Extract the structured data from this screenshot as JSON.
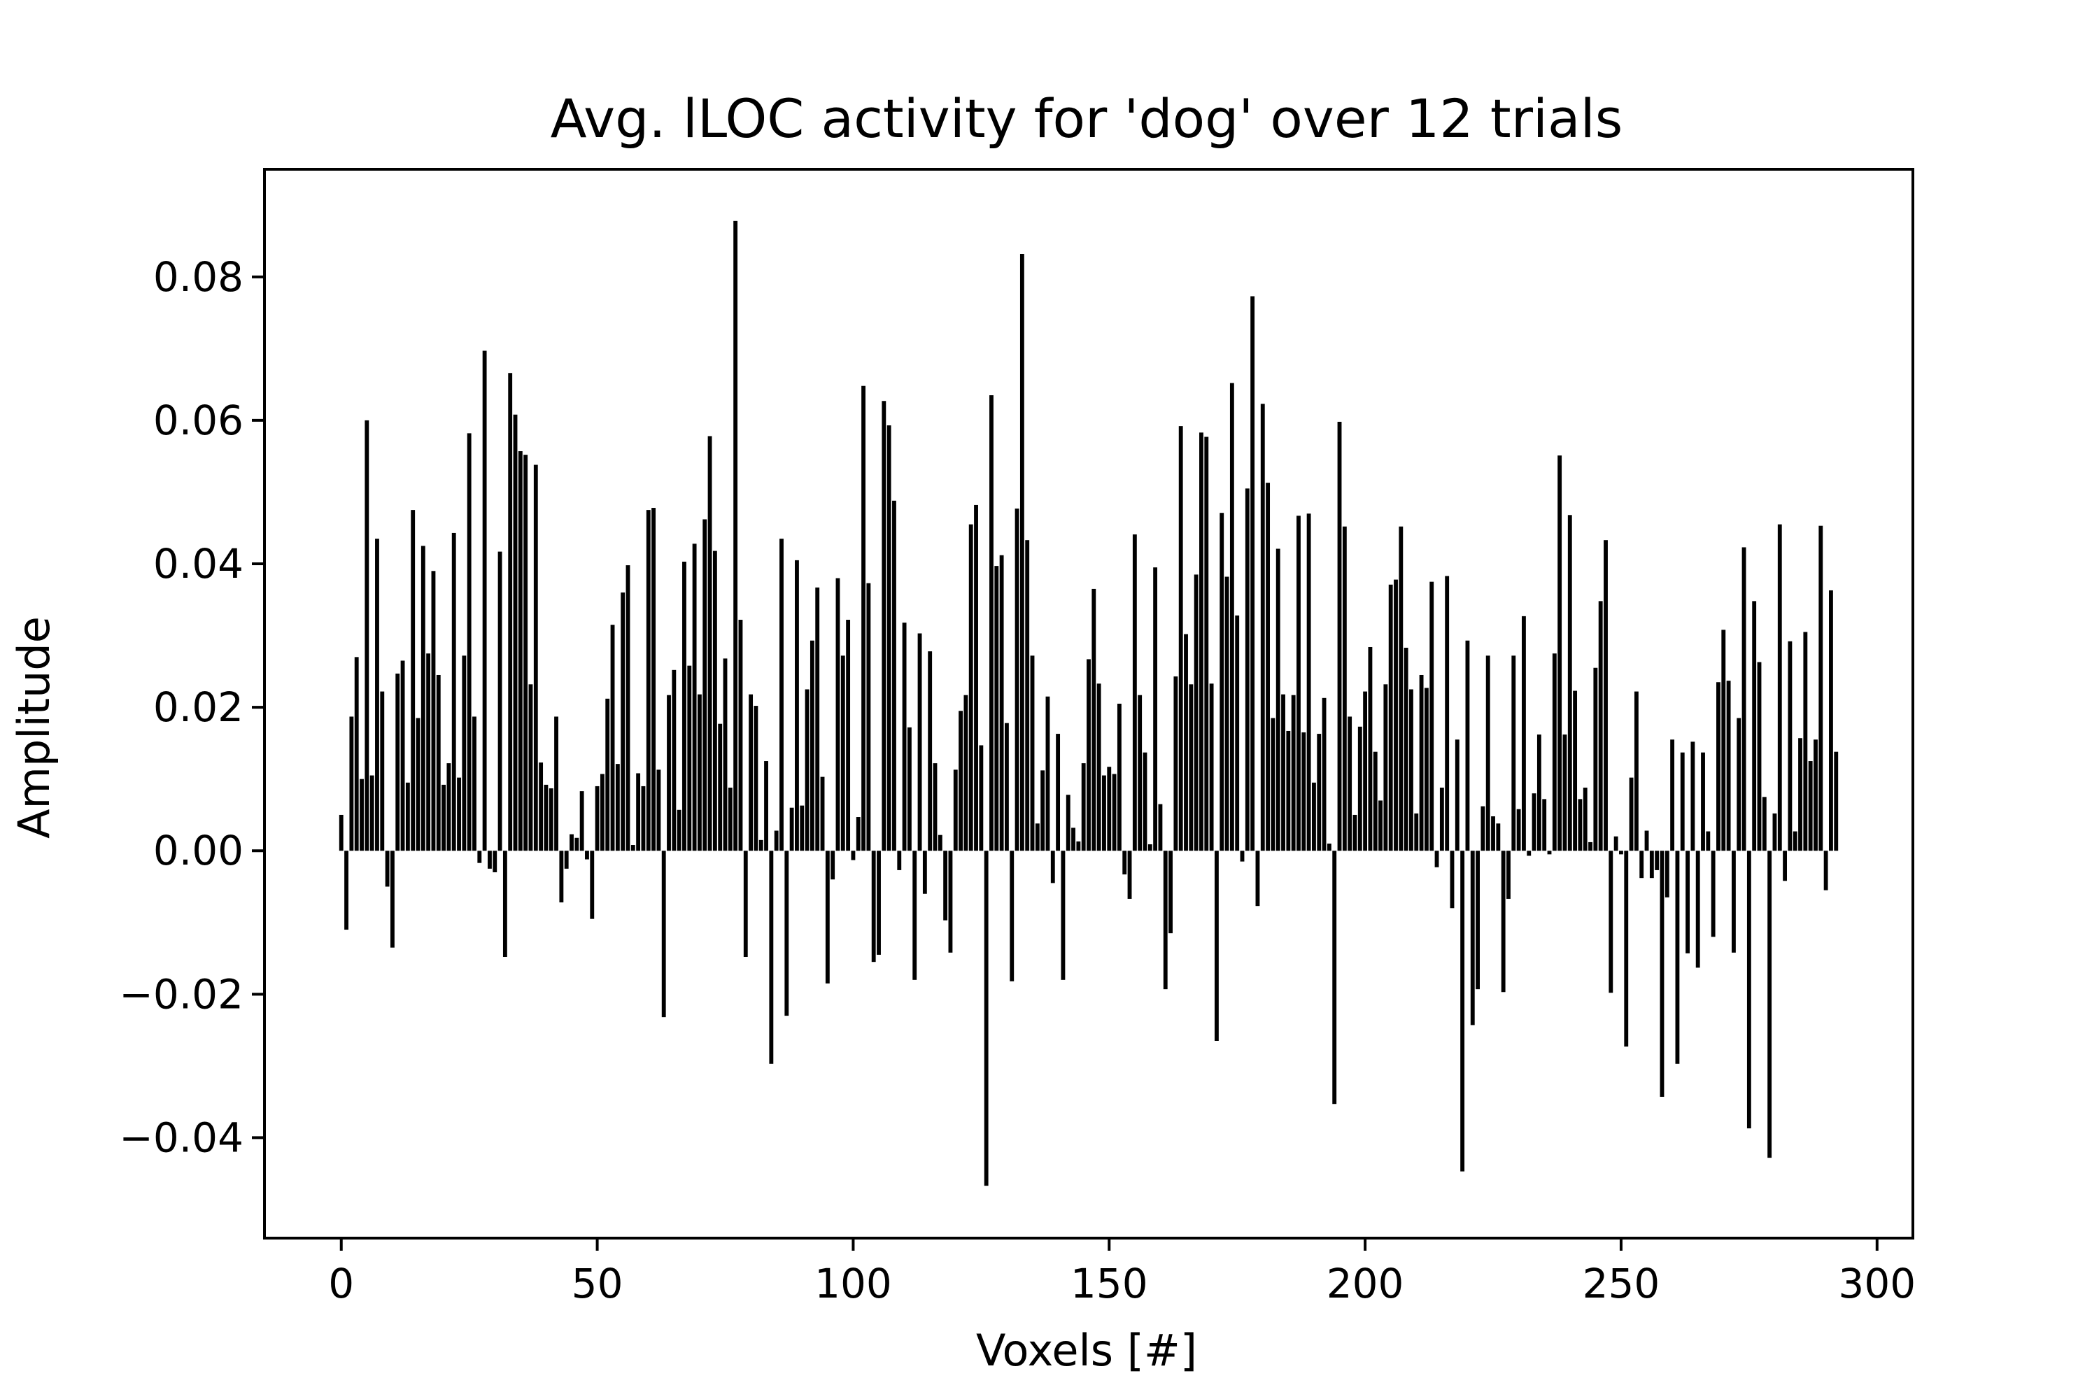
{
  "chart_data": {
    "type": "bar",
    "title": "Avg. lLOC activity for 'dog' over 12 trials",
    "xlabel": "Voxels [#]",
    "ylabel": "Amplitude",
    "xlim": [
      -15,
      307
    ],
    "ylim": [
      -0.054,
      0.095
    ],
    "xticks": [
      0,
      50,
      100,
      150,
      200,
      250,
      300
    ],
    "xtick_labels": [
      "0",
      "50",
      "100",
      "150",
      "200",
      "250",
      "300"
    ],
    "yticks": [
      -0.04,
      -0.02,
      0.0,
      0.02,
      0.04,
      0.06,
      0.08
    ],
    "ytick_labels": [
      "−0.04",
      "−0.02",
      "0.00",
      "0.02",
      "0.04",
      "0.06",
      "0.08"
    ],
    "grid": false,
    "bar_color": "#000000",
    "x": [
      0,
      1,
      2,
      3,
      4,
      5,
      6,
      7,
      8,
      9,
      10,
      11,
      12,
      13,
      14,
      15,
      16,
      17,
      18,
      19,
      20,
      21,
      22,
      23,
      24,
      25,
      26,
      27,
      28,
      29,
      30,
      31,
      32,
      33,
      34,
      35,
      36,
      37,
      38,
      39,
      40,
      41,
      42,
      43,
      44,
      45,
      46,
      47,
      48,
      49,
      50,
      51,
      52,
      53,
      54,
      55,
      56,
      57,
      58,
      59,
      60,
      61,
      62,
      63,
      64,
      65,
      66,
      67,
      68,
      69,
      70,
      71,
      72,
      73,
      74,
      75,
      76,
      77,
      78,
      79,
      80,
      81,
      82,
      83,
      84,
      85,
      86,
      87,
      88,
      89,
      90,
      91,
      92,
      93,
      94,
      95,
      96,
      97,
      98,
      99,
      100,
      101,
      102,
      103,
      104,
      105,
      106,
      107,
      108,
      109,
      110,
      111,
      112,
      113,
      114,
      115,
      116,
      117,
      118,
      119,
      120,
      121,
      122,
      123,
      124,
      125,
      126,
      127,
      128,
      129,
      130,
      131,
      132,
      133,
      134,
      135,
      136,
      137,
      138,
      139,
      140,
      141,
      142,
      143,
      144,
      145,
      146,
      147,
      148,
      149,
      150,
      151,
      152,
      153,
      154,
      155,
      156,
      157,
      158,
      159,
      160,
      161,
      162,
      163,
      164,
      165,
      166,
      167,
      168,
      169,
      170,
      171,
      172,
      173,
      174,
      175,
      176,
      177,
      178,
      179,
      180,
      181,
      182,
      183,
      184,
      185,
      186,
      187,
      188,
      189,
      190,
      191,
      192,
      193,
      194,
      195,
      196,
      197,
      198,
      199,
      200,
      201,
      202,
      203,
      204,
      205,
      206,
      207,
      208,
      209,
      210,
      211,
      212,
      213,
      214,
      215,
      216,
      217,
      218,
      219,
      220,
      221,
      222,
      223,
      224,
      225,
      226,
      227,
      228,
      229,
      230,
      231,
      232,
      233,
      234,
      235,
      236,
      237,
      238,
      239,
      240,
      241,
      242,
      243,
      244,
      245,
      246,
      247,
      248,
      249,
      250,
      251,
      252,
      253,
      254,
      255,
      256,
      257,
      258,
      259,
      260,
      261,
      262,
      263,
      264,
      265,
      266,
      267,
      268,
      269,
      270,
      271,
      272,
      273,
      274,
      275,
      276,
      277,
      278,
      279,
      280,
      281,
      282,
      283,
      284,
      285,
      286,
      287,
      288,
      289,
      290,
      291,
      292
    ],
    "values": [
      0.005,
      -0.011,
      0.0187,
      0.027,
      0.01,
      0.06,
      0.0105,
      0.0435,
      0.0222,
      -0.005,
      -0.0135,
      0.0247,
      0.0265,
      0.0095,
      0.0475,
      0.0185,
      0.0425,
      0.0275,
      0.039,
      0.0245,
      0.0092,
      0.0122,
      0.0443,
      0.0102,
      0.0272,
      0.0582,
      0.0187,
      -0.0017,
      0.0697,
      -0.0025,
      -0.003,
      0.0417,
      -0.0148,
      0.0666,
      0.0608,
      0.0557,
      0.0552,
      0.0232,
      0.0538,
      0.0123,
      0.0092,
      0.0087,
      0.0187,
      -0.0072,
      -0.0025,
      0.0023,
      0.0018,
      0.0083,
      -0.0012,
      -0.0095,
      0.009,
      0.0107,
      0.0212,
      0.0315,
      0.0121,
      0.036,
      0.0398,
      0.0008,
      0.0108,
      0.009,
      0.0475,
      0.0478,
      0.0113,
      -0.0232,
      0.0217,
      0.0252,
      0.0057,
      0.0403,
      0.0258,
      0.0428,
      0.0218,
      0.0462,
      0.0578,
      0.0418,
      0.0177,
      0.0268,
      0.0088,
      0.0878,
      0.0322,
      -0.0148,
      0.0218,
      0.0202,
      0.0015,
      0.0125,
      -0.0297,
      0.0028,
      0.0435,
      -0.023,
      0.006,
      0.0405,
      0.0063,
      0.0225,
      0.0293,
      0.0367,
      0.0103,
      -0.0185,
      -0.004,
      0.038,
      0.0272,
      0.0322,
      -0.0013,
      0.0047,
      0.0648,
      0.0373,
      -0.0155,
      -0.0145,
      0.0627,
      0.0593,
      0.0488,
      -0.0027,
      0.0318,
      0.0172,
      -0.018,
      0.0303,
      -0.006,
      0.0278,
      0.0122,
      0.0022,
      -0.0097,
      -0.0142,
      0.0113,
      0.0195,
      0.0217,
      0.0455,
      0.0482,
      0.0147,
      -0.0467,
      0.0635,
      0.0397,
      0.0412,
      0.0178,
      -0.0182,
      0.0477,
      0.0832,
      0.0433,
      0.0272,
      0.0038,
      0.0112,
      0.0215,
      -0.0045,
      0.0163,
      -0.018,
      0.0078,
      0.0032,
      0.0013,
      0.0122,
      0.0267,
      0.0365,
      0.0233,
      0.0105,
      0.0117,
      0.0107,
      0.0205,
      -0.0033,
      -0.0067,
      0.0441,
      0.0217,
      0.0137,
      0.0009,
      0.0395,
      0.0065,
      -0.0193,
      -0.0115,
      0.0243,
      0.0592,
      0.0302,
      0.0232,
      0.0385,
      0.0583,
      0.0577,
      0.0233,
      -0.0265,
      0.0471,
      0.0382,
      0.0652,
      0.0328,
      -0.0015,
      0.0505,
      0.0773,
      -0.0077,
      0.0623,
      0.0513,
      0.0185,
      0.0421,
      0.0218,
      0.0167,
      0.0217,
      0.0467,
      0.0165,
      0.047,
      0.0095,
      0.0163,
      0.0213,
      0.001,
      -0.0353,
      0.0598,
      0.0452,
      0.0187,
      0.005,
      0.0173,
      0.0222,
      0.0284,
      0.0138,
      0.007,
      0.0232,
      0.0371,
      0.0378,
      0.0452,
      0.0283,
      0.0225,
      0.0052,
      0.0245,
      0.0227,
      0.0375,
      -0.0023,
      0.0088,
      0.0383,
      -0.008,
      0.0155,
      -0.0447,
      0.0293,
      -0.0243,
      -0.0193,
      0.0062,
      0.0272,
      0.0048,
      0.0038,
      -0.0197,
      -0.0067,
      0.0272,
      0.0058,
      0.0327,
      -0.0007,
      0.008,
      0.0162,
      0.0072,
      -0.0005,
      0.0275,
      0.0551,
      0.0162,
      0.0468,
      0.0223,
      0.0072,
      0.0088,
      0.0012,
      0.0255,
      0.0348,
      0.0433,
      -0.0198,
      0.002,
      -0.0005,
      -0.0273,
      0.0102,
      0.0222,
      -0.0038,
      0.0028,
      -0.0038,
      -0.0027,
      -0.0343,
      -0.0065,
      0.0155,
      -0.0297,
      0.0137,
      -0.0143,
      0.0152,
      -0.0163,
      0.0137,
      0.0027,
      -0.012,
      0.0235,
      0.0308,
      0.0237,
      -0.0142,
      0.0185,
      0.0423,
      -0.0387,
      0.0348,
      0.0263,
      0.0075,
      -0.0428,
      0.0052,
      0.0455,
      -0.0042,
      0.0292,
      0.0027,
      0.0157,
      0.0305,
      0.0125,
      0.0155,
      0.0453,
      -0.0055,
      0.0363,
      0.0138
    ]
  }
}
